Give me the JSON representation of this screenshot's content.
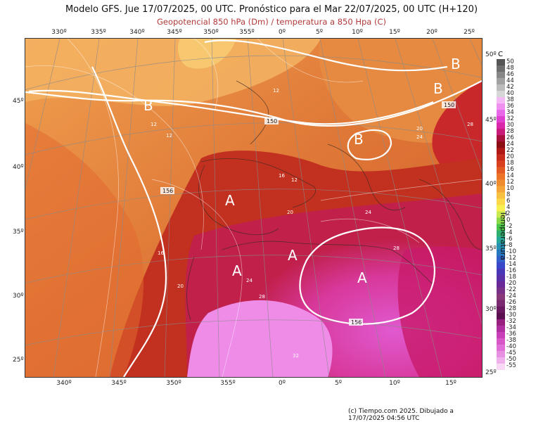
{
  "header": {
    "title": "Modelo GFS. Jue 17/07/2025, 00 UTC. Pronóstico para el Mar 22/07/2025, 00 UTC (H+120)",
    "subtitle": "Geopotencial 850 hPa (Dm) / temperatura a 850 Hpa (C)"
  },
  "axes": {
    "lon_top": [
      "330º",
      "335º",
      "340º",
      "345º",
      "350º",
      "355º",
      "0º",
      "5º",
      "10º",
      "15º",
      "20º",
      "25º"
    ],
    "lon_bottom": [
      "340º",
      "345º",
      "350º",
      "355º",
      "0º",
      "5º",
      "10º",
      "15º"
    ],
    "lat_left": [
      "45º",
      "40º",
      "35º",
      "30º",
      "25º"
    ],
    "lat_right": [
      "50º",
      "45º",
      "40º",
      "35º",
      "30º",
      "25º"
    ]
  },
  "map": {
    "systems": [
      {
        "type": "B",
        "label": "B"
      },
      {
        "type": "B",
        "label": "B"
      },
      {
        "type": "B",
        "label": "B"
      },
      {
        "type": "B",
        "label": "B"
      },
      {
        "type": "A",
        "label": "A"
      },
      {
        "type": "A",
        "label": "A"
      },
      {
        "type": "A",
        "label": "A"
      },
      {
        "type": "A",
        "label": "A"
      }
    ],
    "contour_labels": [
      "150",
      "150",
      "156",
      "156"
    ],
    "temp_labels": [
      "12",
      "12",
      "12",
      "16",
      "12",
      "20",
      "24",
      "28",
      "16",
      "20",
      "24",
      "28",
      "32",
      "28",
      "24",
      "20"
    ],
    "credit": "(c) Tiempo.com 2025. Dibujado a 17/07/2025 04:56 UTC"
  },
  "colorbar": {
    "unit": "C",
    "title": "Temperatura",
    "labels": [
      "50",
      "48",
      "46",
      "44",
      "42",
      "40",
      "38",
      "36",
      "34",
      "32",
      "30",
      "28",
      "26",
      "24",
      "22",
      "20",
      "18",
      "16",
      "14",
      "12",
      "10",
      "8",
      "6",
      "4",
      "2",
      "0",
      "-2",
      "-4",
      "-6",
      "-8",
      "-10",
      "-12",
      "-14",
      "-16",
      "-18",
      "-20",
      "-22",
      "-24",
      "-26",
      "-28",
      "-30",
      "-32",
      "-34",
      "-36",
      "-38",
      "-40",
      "-45",
      "-50",
      "-55"
    ],
    "colors": [
      "#555555",
      "#6e6e6e",
      "#888888",
      "#a2a2a2",
      "#bcbcbc",
      "#d6d6d6",
      "#f4b8f4",
      "#f090f0",
      "#e868e8",
      "#e040d0",
      "#d82aa8",
      "#c81a78",
      "#a8103c",
      "#8c0c14",
      "#b01818",
      "#c82a1c",
      "#d84020",
      "#e45a24",
      "#ec7428",
      "#f08c30",
      "#f4a438",
      "#f8c040",
      "#fcd848",
      "#f8f050",
      "#c8e850",
      "#88d848",
      "#48c448",
      "#30b070",
      "#28a898",
      "#2890b0",
      "#2878c0",
      "#3060c8",
      "#3848c8",
      "#4838b8",
      "#5830a8",
      "#682898",
      "#783088",
      "#883878",
      "#7a2870",
      "#6a1860",
      "#5a1050",
      "#982080",
      "#b030a0",
      "#c840b8",
      "#d858c8",
      "#e070d8",
      "#e890e4",
      "#f0b0ec",
      "#f8d8f6"
    ]
  }
}
